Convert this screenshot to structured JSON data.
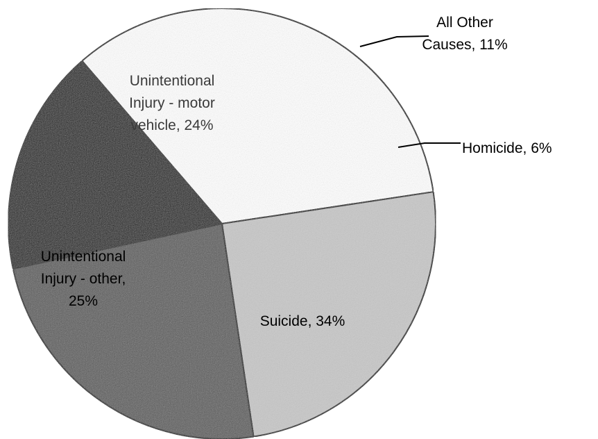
{
  "chart_data": {
    "type": "pie",
    "title": "",
    "slices": [
      {
        "label": "Homicide, 6%",
        "value": 6,
        "color": "#000000"
      },
      {
        "label": "Suicide, 34%",
        "value": 34,
        "color": "#ffffff"
      },
      {
        "label": "Unintentional Injury - other, 25%",
        "value": 25,
        "color": "#c8c8c8"
      },
      {
        "label": "Unintentional Injury - motor vehicle, 24%",
        "value": 24,
        "color": "#5a5a5a"
      },
      {
        "label": "All Other Causes, 11%",
        "value": 11,
        "color": "#111111"
      }
    ],
    "legend": "none"
  }
}
